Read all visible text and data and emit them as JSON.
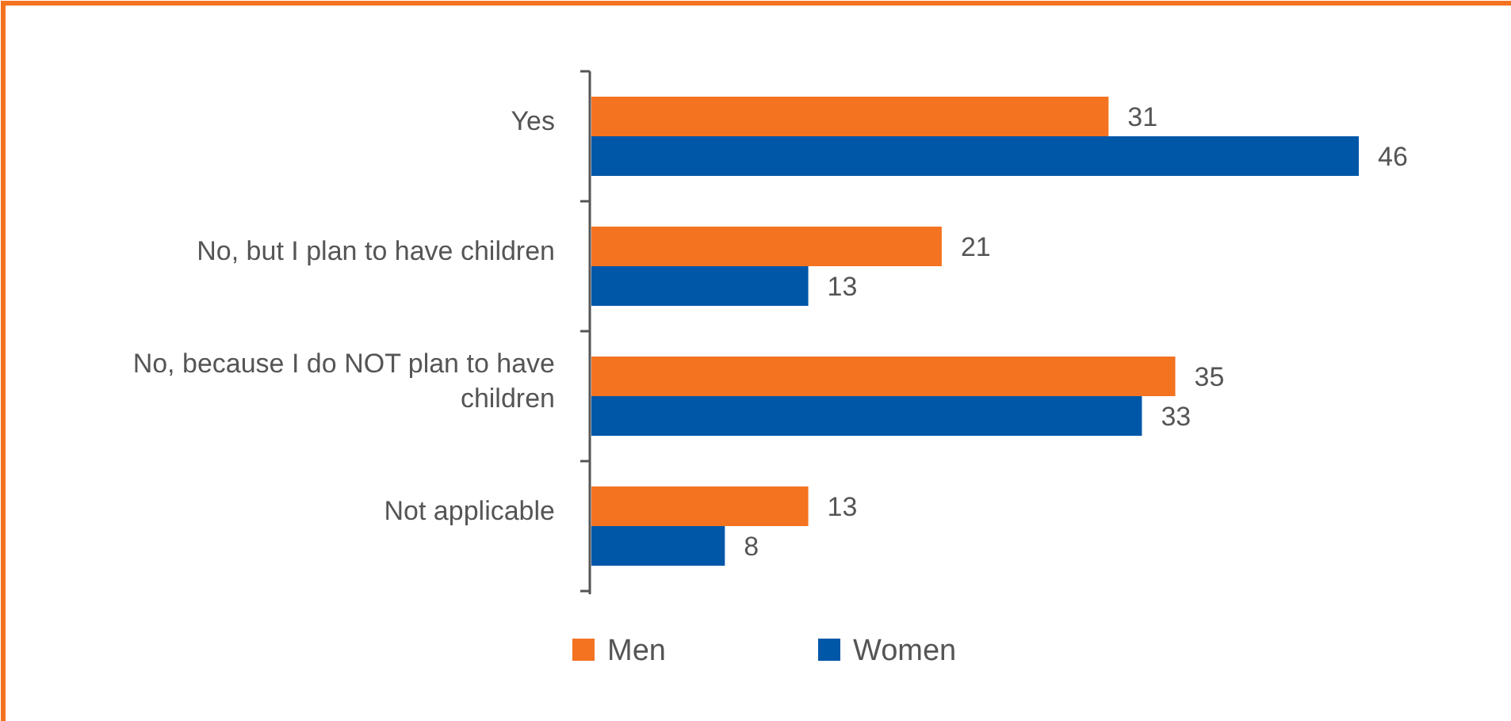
{
  "chart_data": {
    "type": "bar",
    "orientation": "horizontal",
    "categories": [
      "Yes",
      "No, but I plan to have children",
      "No, because I do NOT plan to have children",
      "Not applicable"
    ],
    "series": [
      {
        "name": "Men",
        "color": "#f47321",
        "values": [
          31,
          21,
          35,
          13
        ]
      },
      {
        "name": "Women",
        "color": "#0057a8",
        "values": [
          46,
          13,
          33,
          8
        ]
      }
    ],
    "data_labels": true,
    "legend": "bottom"
  }
}
